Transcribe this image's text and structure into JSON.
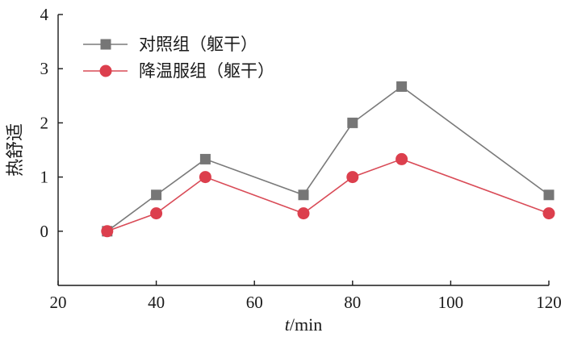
{
  "chart_data": {
    "type": "line",
    "xlabel_italic": "t",
    "xlabel_rest": "/min",
    "ylabel": "热舒适",
    "xlim": [
      20,
      120
    ],
    "ylim": [
      -1,
      4
    ],
    "x_ticks": [
      20,
      40,
      60,
      80,
      100,
      120
    ],
    "y_ticks": [
      0,
      1,
      2,
      3,
      4
    ],
    "grid": false,
    "legend_position": "top-left",
    "x": [
      30,
      40,
      50,
      70,
      80,
      90,
      120
    ],
    "series": [
      {
        "name": "对照组（躯干）",
        "marker": "square",
        "line_color": "#7a7a7a",
        "marker_color": "#767676",
        "values": [
          0,
          0.67,
          1.33,
          0.67,
          2.0,
          2.67,
          0.67
        ]
      },
      {
        "name": "降温服组（躯干）",
        "marker": "circle",
        "line_color": "#d94b57",
        "marker_color": "#dc3f4d",
        "values": [
          0,
          0.33,
          1.0,
          0.33,
          1.0,
          1.33,
          0.33
        ]
      }
    ]
  }
}
